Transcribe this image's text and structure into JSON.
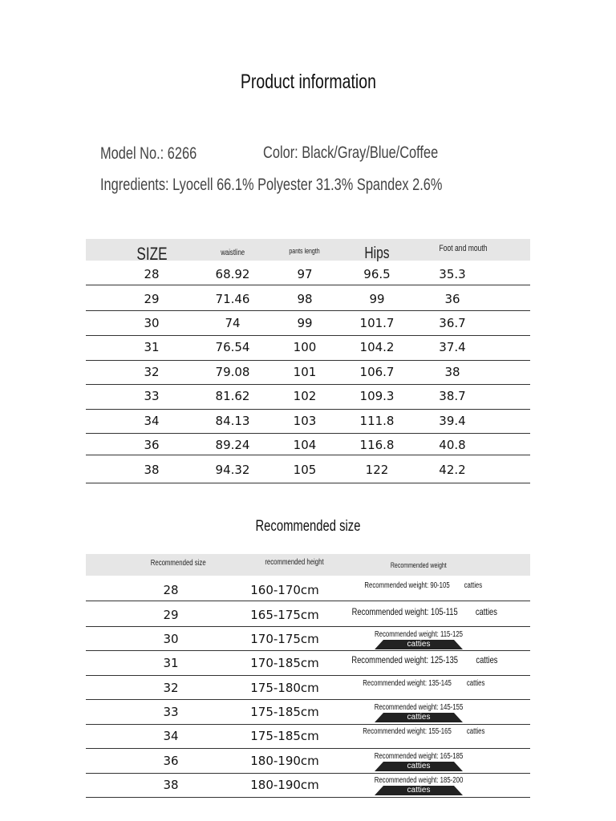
{
  "title": "Product information",
  "model": "Model No.: 6266",
  "color": "Color: Black/Gray/Blue/Coffee",
  "ingredients": "Ingredients: Lyocell 66.1% Polyester 31.3% Spandex 2.6%",
  "size_table": {
    "headers": [
      "SIZE",
      "waistline",
      "pants length",
      "Hips",
      "Foot and mouth"
    ],
    "rows": [
      [
        "28",
        "68.92",
        "97",
        "96.5",
        "35.3"
      ],
      [
        "29",
        "71.46",
        "98",
        "99",
        "36"
      ],
      [
        "30",
        "74",
        "99",
        "101.7",
        "36.7"
      ],
      [
        "31",
        "76.54",
        "100",
        "104.2",
        "37.4"
      ],
      [
        "32",
        "79.08",
        "101",
        "106.7",
        "38"
      ],
      [
        "33",
        "81.62",
        "102",
        "109.3",
        "38.7"
      ],
      [
        "34",
        "84.13",
        "103",
        "111.8",
        "39.4"
      ],
      [
        "36",
        "89.24",
        "104",
        "116.8",
        "40.8"
      ],
      [
        "38",
        "94.32",
        "105",
        "122",
        "42.2"
      ]
    ]
  },
  "recommended_title": "Recommended size",
  "rec_table": {
    "headers": [
      "Recommended size",
      "recommended height",
      "Recommended weight"
    ],
    "rows": [
      [
        "28",
        "160-170cm",
        "Recommended weight: 90-105",
        "catties"
      ],
      [
        "29",
        "165-175cm",
        "Recommended weight: 105-115",
        "catties"
      ],
      [
        "30",
        "170-175cm",
        "Recommended weight: 115-125",
        "catties"
      ],
      [
        "31",
        "170-185cm",
        "Recommended weight: 125-135",
        "catties"
      ],
      [
        "32",
        "175-180cm",
        "Recommended weight: 135-145",
        "catties"
      ],
      [
        "33",
        "175-185cm",
        "Recommended weight: 145-155",
        "catties"
      ],
      [
        "34",
        "175-185cm",
        "Recommended weight: 155-165",
        "catties"
      ],
      [
        "36",
        "180-190cm",
        "Recommended weight: 165-185",
        "catties"
      ],
      [
        "38",
        "180-190cm",
        "Recommended weight: 185-200",
        "catties"
      ]
    ]
  }
}
